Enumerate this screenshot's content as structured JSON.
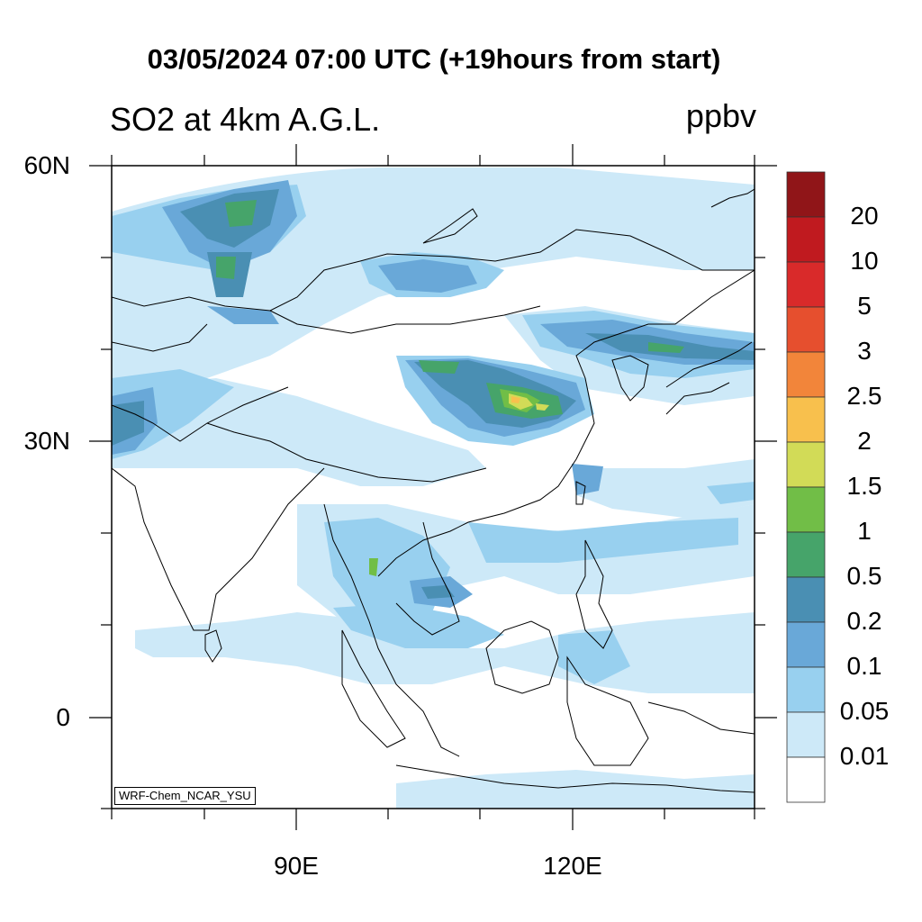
{
  "title": "03/05/2024 07:00 UTC (+19hours from start)",
  "subtitle": "SO2 at 4km A.G.L.",
  "units": "ppbv",
  "credit": "WRF-Chem_NCAR_YSU",
  "axes": {
    "lat_labels": [
      "60N",
      "30N",
      "0"
    ],
    "lon_labels": [
      "90E",
      "120E"
    ]
  },
  "colorbar": {
    "labels": [
      "20",
      "10",
      "5",
      "3",
      "2.5",
      "2",
      "1.5",
      "1",
      "0.5",
      "0.2",
      "0.1",
      "0.05",
      "0.01"
    ],
    "colors": [
      "#901518",
      "#c01a1f",
      "#d92a2a",
      "#e64f2e",
      "#f2853a",
      "#f8c04d",
      "#d2db57",
      "#71be47",
      "#46a46a",
      "#4a8fb3",
      "#69a8d8",
      "#98d0ef",
      "#cde9f8",
      "#ffffff"
    ]
  },
  "colors": {
    "land_outline": "#000000",
    "background": "#ffffff"
  }
}
